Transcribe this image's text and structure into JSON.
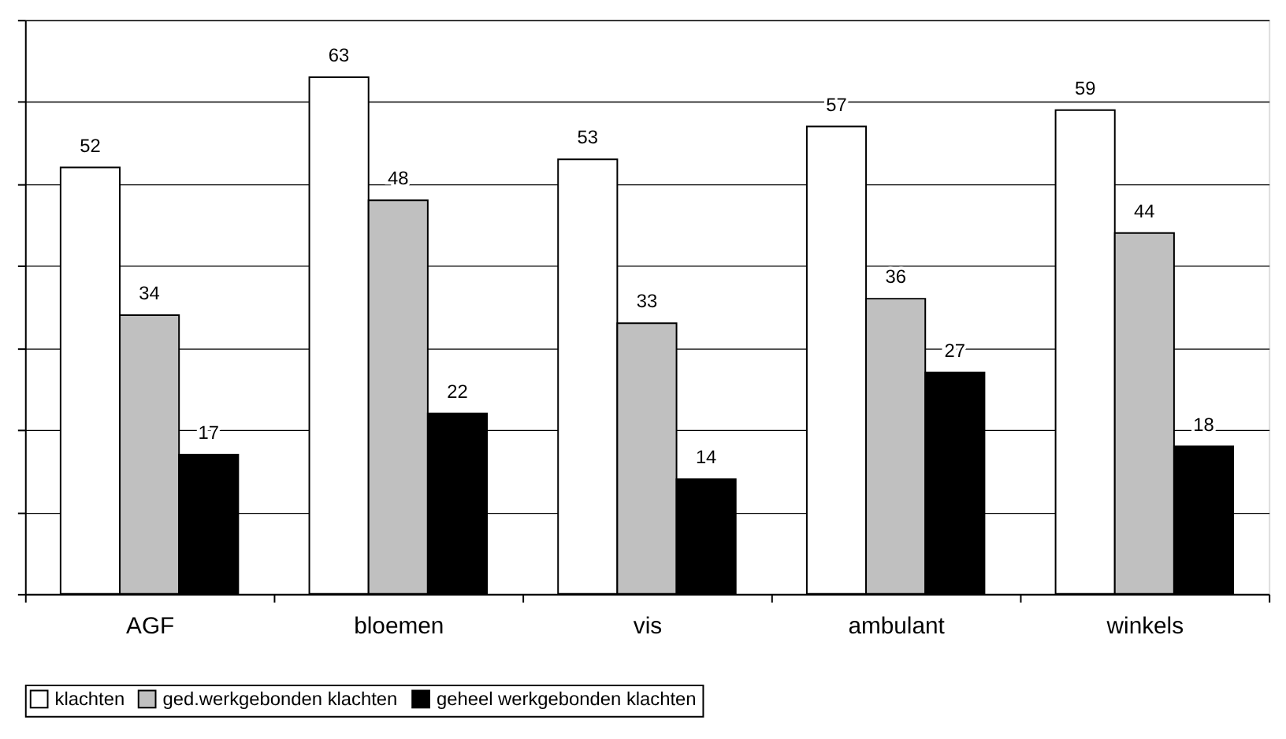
{
  "chart_data": {
    "type": "bar",
    "categories": [
      "AGF",
      "bloemen",
      "vis",
      "ambulant",
      "winkels"
    ],
    "series": [
      {
        "name": "klachten",
        "color": "#ffffff",
        "values": [
          52,
          63,
          53,
          57,
          59
        ]
      },
      {
        "name": "ged.werkgebonden klachten",
        "color": "#c0c0c0",
        "values": [
          34,
          48,
          33,
          36,
          44
        ]
      },
      {
        "name": "geheel werkgebonden klachten",
        "color": "#000000",
        "values": [
          17,
          22,
          14,
          27,
          18
        ]
      }
    ],
    "ylim": [
      0,
      70
    ],
    "yticks": [
      {
        "value": 0,
        "label": null
      },
      {
        "value": 10,
        "label": null
      },
      {
        "value": 20,
        "label": null
      },
      {
        "value": 30,
        "label": null
      },
      {
        "value": 40,
        "label": null
      },
      {
        "value": 50,
        "label": null
      },
      {
        "value": 60,
        "label": null
      },
      {
        "value": 70,
        "label": null
      }
    ],
    "tick_labels": "x",
    "grid": "y",
    "data_labels": true,
    "legend": "bottom"
  }
}
